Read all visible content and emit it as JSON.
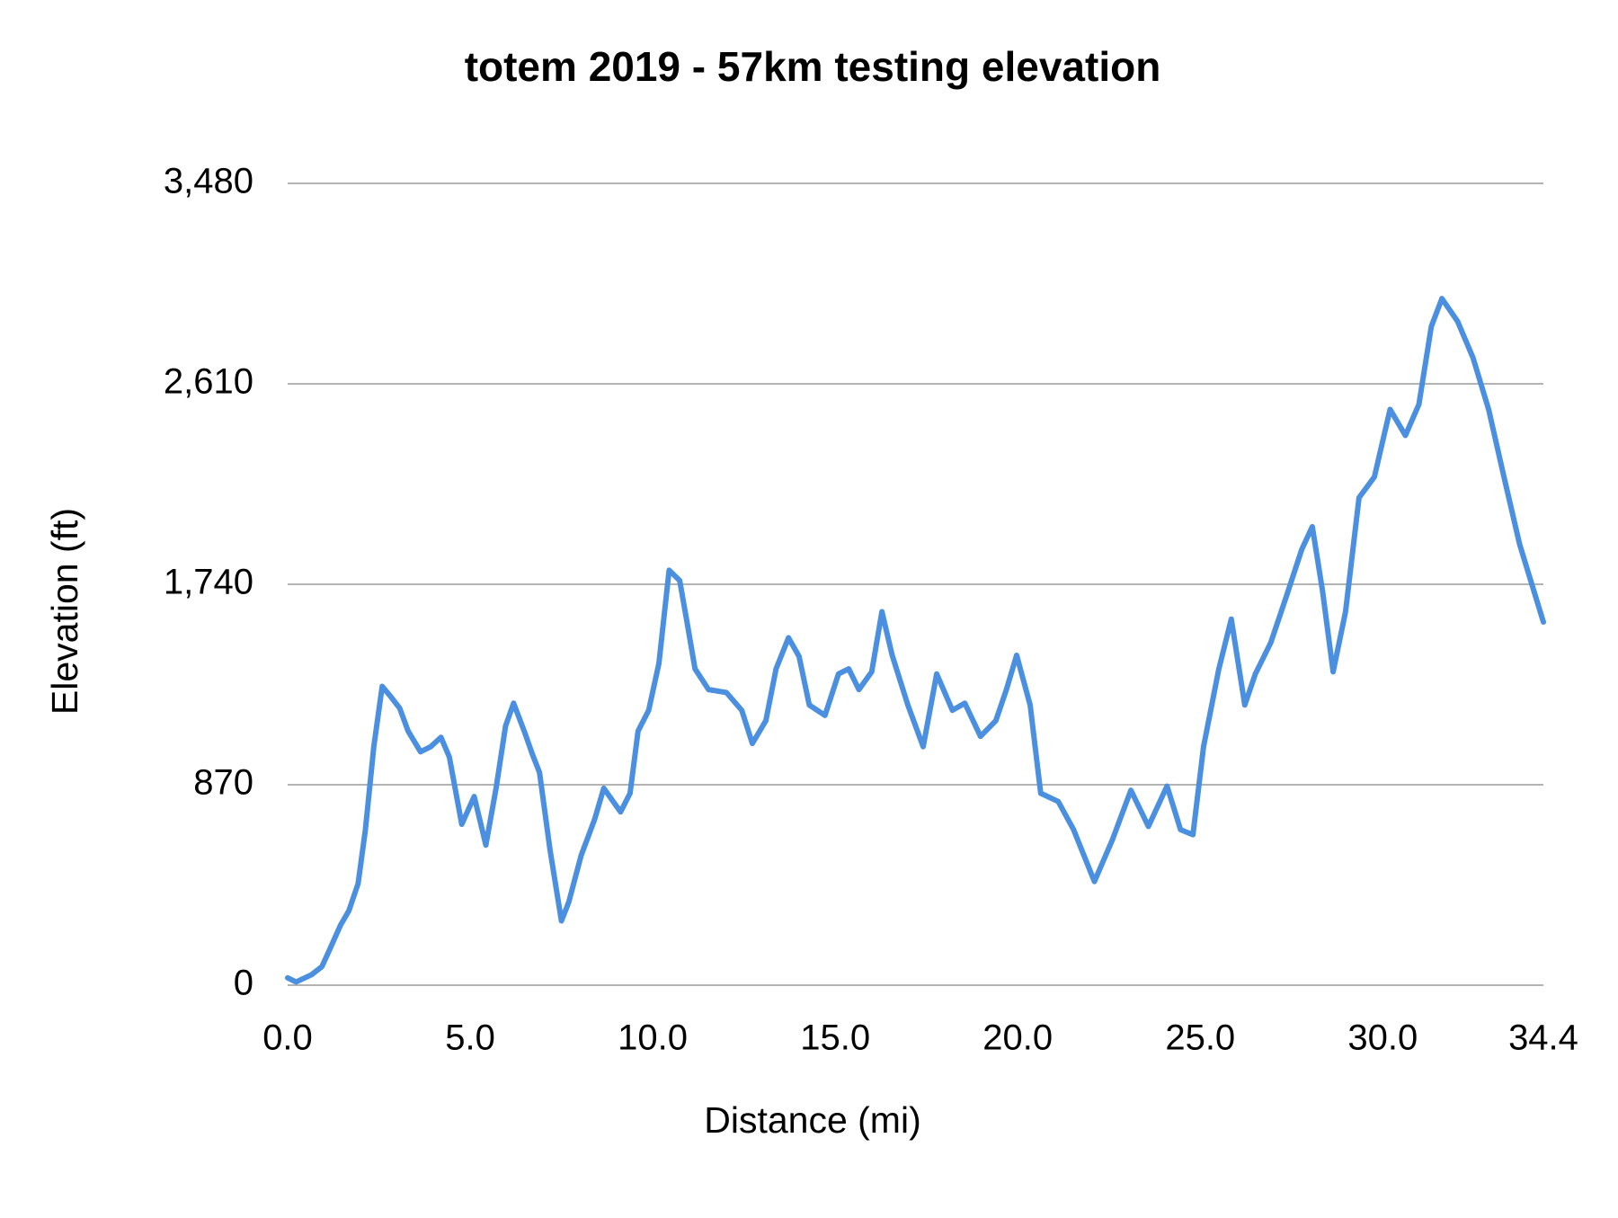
{
  "chart_data": {
    "type": "line",
    "title": "totem 2019 - 57km testing elevation",
    "x_label": "Distance (mi)",
    "y_label": "Elevation (ft)",
    "color": "#4a8fe0",
    "grid": true,
    "x": [
      0,
      0.23,
      0.65,
      0.94,
      1.16,
      1.45,
      1.68,
      1.93,
      2.13,
      2.36,
      2.59,
      2.78,
      3.07,
      3.3,
      3.64,
      3.92,
      4.2,
      4.43,
      4.77,
      5.11,
      5.43,
      5.71,
      5.97,
      6.19,
      6.48,
      6.7,
      6.9,
      7.19,
      7.5,
      7.7,
      8.04,
      8.41,
      8.66,
      9.12,
      9.38,
      9.6,
      9.89,
      10.17,
      10.45,
      10.74,
      10.94,
      11.16,
      11.53,
      12.02,
      12.44,
      12.73,
      13.1,
      13.38,
      13.72,
      14.01,
      14.29,
      14.72,
      15.09,
      15.37,
      15.65,
      16.0,
      16.28,
      16.56,
      16.99,
      17.41,
      17.78,
      18.21,
      18.55,
      18.98,
      19.4,
      19.69,
      19.97,
      20.34,
      20.63,
      21.11,
      21.53,
      22.1,
      22.59,
      23.1,
      23.58,
      24.09,
      24.46,
      24.8,
      25.09,
      25.51,
      25.85,
      26.22,
      26.51,
      26.93,
      27.36,
      27.78,
      28.07,
      28.35,
      28.64,
      28.98,
      29.35,
      29.77,
      30.2,
      30.62,
      30.99,
      31.33,
      31.62,
      32.05,
      32.47,
      32.9,
      33.32,
      33.75,
      34.4
    ],
    "values": [
      32,
      14,
      45,
      81,
      158,
      261,
      324,
      441,
      675,
      1035,
      1297,
      1261,
      1202,
      1103,
      1013,
      1035,
      1076,
      990,
      698,
      819,
      608,
      855,
      1125,
      1224,
      1103,
      1004,
      923,
      585,
      279,
      360,
      563,
      720,
      855,
      752,
      833,
      1103,
      1193,
      1396,
      1801,
      1756,
      1576,
      1373,
      1283,
      1270,
      1193,
      1049,
      1148,
      1373,
      1508,
      1427,
      1216,
      1171,
      1351,
      1373,
      1283,
      1360,
      1621,
      1432,
      1216,
      1035,
      1351,
      1193,
      1224,
      1080,
      1148,
      1283,
      1432,
      1216,
      833,
      797,
      675,
      450,
      630,
      846,
      689,
      864,
      675,
      653,
      1035,
      1373,
      1589,
      1216,
      1351,
      1486,
      1688,
      1891,
      1990,
      1711,
      1360,
      1621,
      2116,
      2206,
      2499,
      2386,
      2521,
      2859,
      2980,
      2881,
      2724,
      2499,
      2206,
      1913,
      1576
    ],
    "xlim": [
      0,
      34.4
    ],
    "xticks": [
      {
        "value": 0,
        "label": "0.0"
      },
      {
        "value": 5,
        "label": "5.0"
      },
      {
        "value": 10,
        "label": "10.0"
      },
      {
        "value": 15,
        "label": "15.0"
      },
      {
        "value": 20,
        "label": "20.0"
      },
      {
        "value": 25,
        "label": "25.0"
      },
      {
        "value": 30,
        "label": "30.0"
      },
      34.4
    ],
    "ylim": [
      0,
      3480
    ],
    "yticks": [
      0,
      870,
      {
        "value": 1740,
        "label": "1,740"
      },
      {
        "value": 2610,
        "label": "2,610"
      },
      {
        "value": 3480,
        "label": "3,480"
      }
    ]
  }
}
